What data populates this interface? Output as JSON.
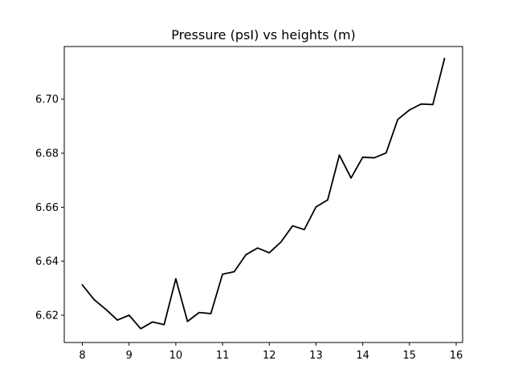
{
  "chart_data": {
    "type": "line",
    "title": "Pressure  (psI) vs heights (m)",
    "xlabel": "",
    "ylabel": "",
    "xlim": [
      7.6125,
      16.1375
    ],
    "ylim": [
      6.6099,
      6.7195
    ],
    "grid": false,
    "x_ticks": [
      8,
      9,
      10,
      11,
      12,
      13,
      14,
      15,
      16
    ],
    "y_ticks": [
      6.62,
      6.64,
      6.66,
      6.68,
      6.7
    ],
    "x_tick_labels": [
      "8",
      "9",
      "10",
      "11",
      "12",
      "13",
      "14",
      "15",
      "16"
    ],
    "y_tick_labels": [
      "6.62",
      "6.64",
      "6.66",
      "6.68",
      "6.70"
    ],
    "series": [
      {
        "color": "#000000",
        "x": [
          8.0,
          8.25,
          8.5,
          8.75,
          9.0,
          9.25,
          9.5,
          9.75,
          10.0,
          10.25,
          10.5,
          10.75,
          11.0,
          11.25,
          11.5,
          11.75,
          12.0,
          12.25,
          12.5,
          12.75,
          13.0,
          13.25,
          13.5,
          13.75,
          14.0,
          14.25,
          14.5,
          14.75,
          15.0,
          15.25,
          15.5,
          15.75
        ],
        "y": [
          6.6312,
          6.6258,
          6.6222,
          6.6182,
          6.62,
          6.615,
          6.6175,
          6.6165,
          6.6335,
          6.6177,
          6.621,
          6.6206,
          6.6352,
          6.6361,
          6.6424,
          6.6449,
          6.6431,
          6.6471,
          6.6531,
          6.6517,
          6.6601,
          6.6627,
          6.6793,
          6.6708,
          6.6785,
          6.6783,
          6.6801,
          6.6925,
          6.696,
          6.6982,
          6.698,
          6.715
        ]
      }
    ]
  }
}
